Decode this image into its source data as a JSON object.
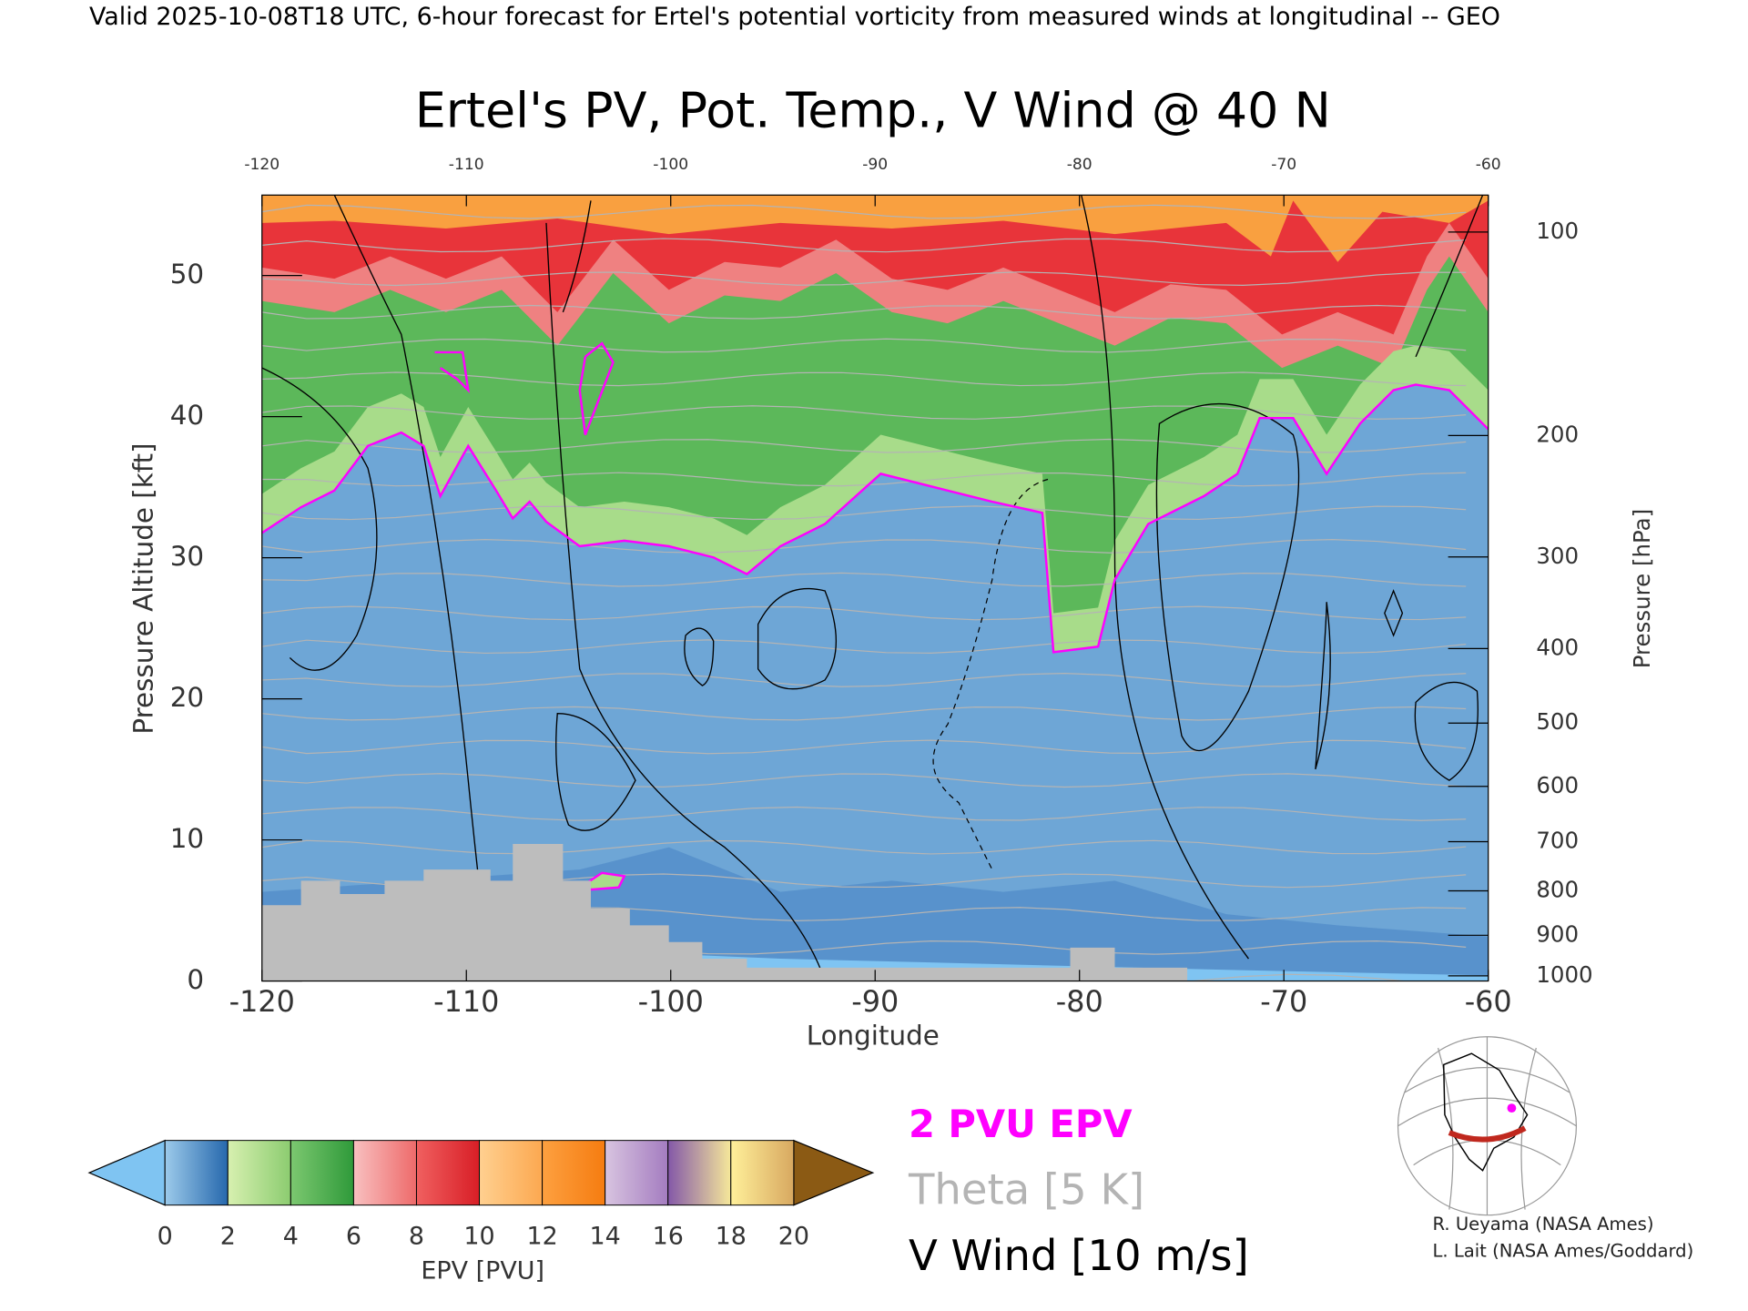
{
  "header": "Valid 2025-10-08T18 UTC, 6-hour forecast for Ertel's potential vorticity from measured winds at longitudinal -- GEO",
  "chart_data": {
    "type": "contour",
    "title": "Ertel's PV, Pot. Temp., V Wind @ 40 N",
    "x_label": "Longitude",
    "y_label": "Pressure Altitude [kft]",
    "y2_label": "Pressure [hPa]",
    "xlim": [
      -120,
      -60
    ],
    "xticks": [
      -120,
      -110,
      -100,
      -90,
      -80,
      -70,
      -60
    ],
    "ylim": [
      0,
      55.7
    ],
    "yticks": [
      0,
      10,
      20,
      30,
      40,
      50
    ],
    "y2_scale": "pressure-altitude",
    "y2ticks": [
      100,
      200,
      300,
      400,
      500,
      600,
      700,
      800,
      900,
      1000
    ],
    "colorbar": {
      "label": "EPV [PVU]",
      "ticks": [
        0,
        2,
        4,
        6,
        8,
        10,
        12,
        14,
        16,
        18,
        20
      ],
      "colors": [
        [
          "#9ccaea",
          "#2668ad"
        ],
        [
          "#d7f0b0",
          "#8ccc70"
        ],
        [
          "#7cc870",
          "#2f9a3a"
        ],
        [
          "#f8c0c0",
          "#ee6a6a"
        ],
        [
          "#f06060",
          "#d81e26"
        ],
        [
          "#ffd090",
          "#fca850"
        ],
        [
          "#fda040",
          "#f57c10"
        ],
        [
          "#d8c4e0",
          "#a47cc0"
        ],
        [
          "#8458a8",
          "#f6e89a"
        ],
        [
          "#fff09a",
          "#d8a860"
        ]
      ],
      "under_color": "#7fc4f2",
      "over_color": "#8b5a14"
    },
    "legend": [
      {
        "name": "2 PVU EPV",
        "color": "#ff00ff"
      },
      {
        "name": "Theta [5 K]",
        "color": "#b4b4b4"
      },
      {
        "name": "V Wind [10 m/s]",
        "color": "#000000"
      }
    ]
  },
  "credits": [
    "R. Ueyama (NASA Ames)",
    "L. Lait (NASA Ames/Goddard)"
  ]
}
